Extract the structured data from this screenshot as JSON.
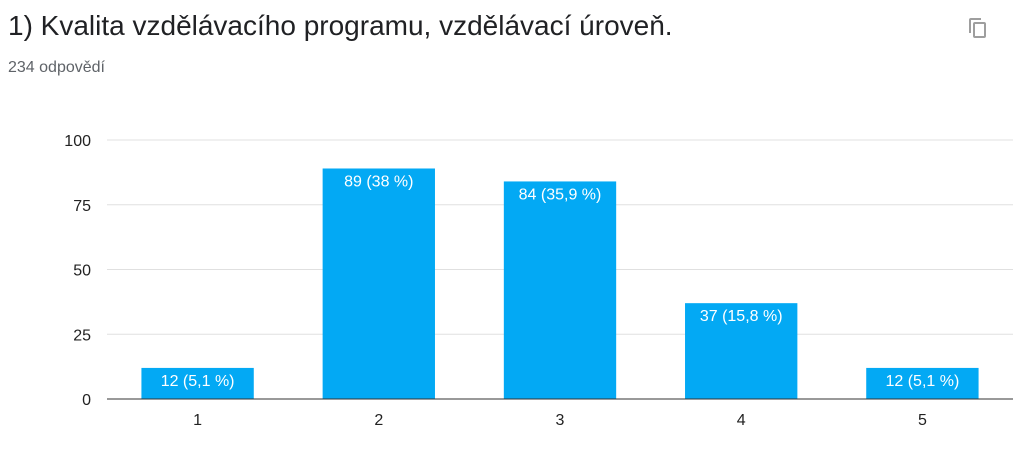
{
  "header": {
    "title": "1) Kvalita vzdělávacího programu, vzdělávací úroveň.",
    "response_count": "234 odpovědí",
    "copy_icon": "copy-icon"
  },
  "colors": {
    "bar": "#03A9F4",
    "grid": "#E0E0E0",
    "axis": "#333333",
    "copy_icon": "#9E9E9E"
  },
  "chart_data": {
    "type": "bar",
    "categories": [
      "1",
      "2",
      "3",
      "4",
      "5"
    ],
    "values": [
      12,
      89,
      84,
      37,
      12
    ],
    "data_labels": [
      "12 (5,1 %)",
      "89 (38 %)",
      "84 (35,9 %)",
      "37 (15,8 %)",
      "12 (5,1 %)"
    ],
    "ylim": [
      0,
      100
    ],
    "yticks": [
      0,
      25,
      50,
      75,
      100
    ],
    "grid": true,
    "title": "",
    "xlabel": "",
    "ylabel": ""
  }
}
